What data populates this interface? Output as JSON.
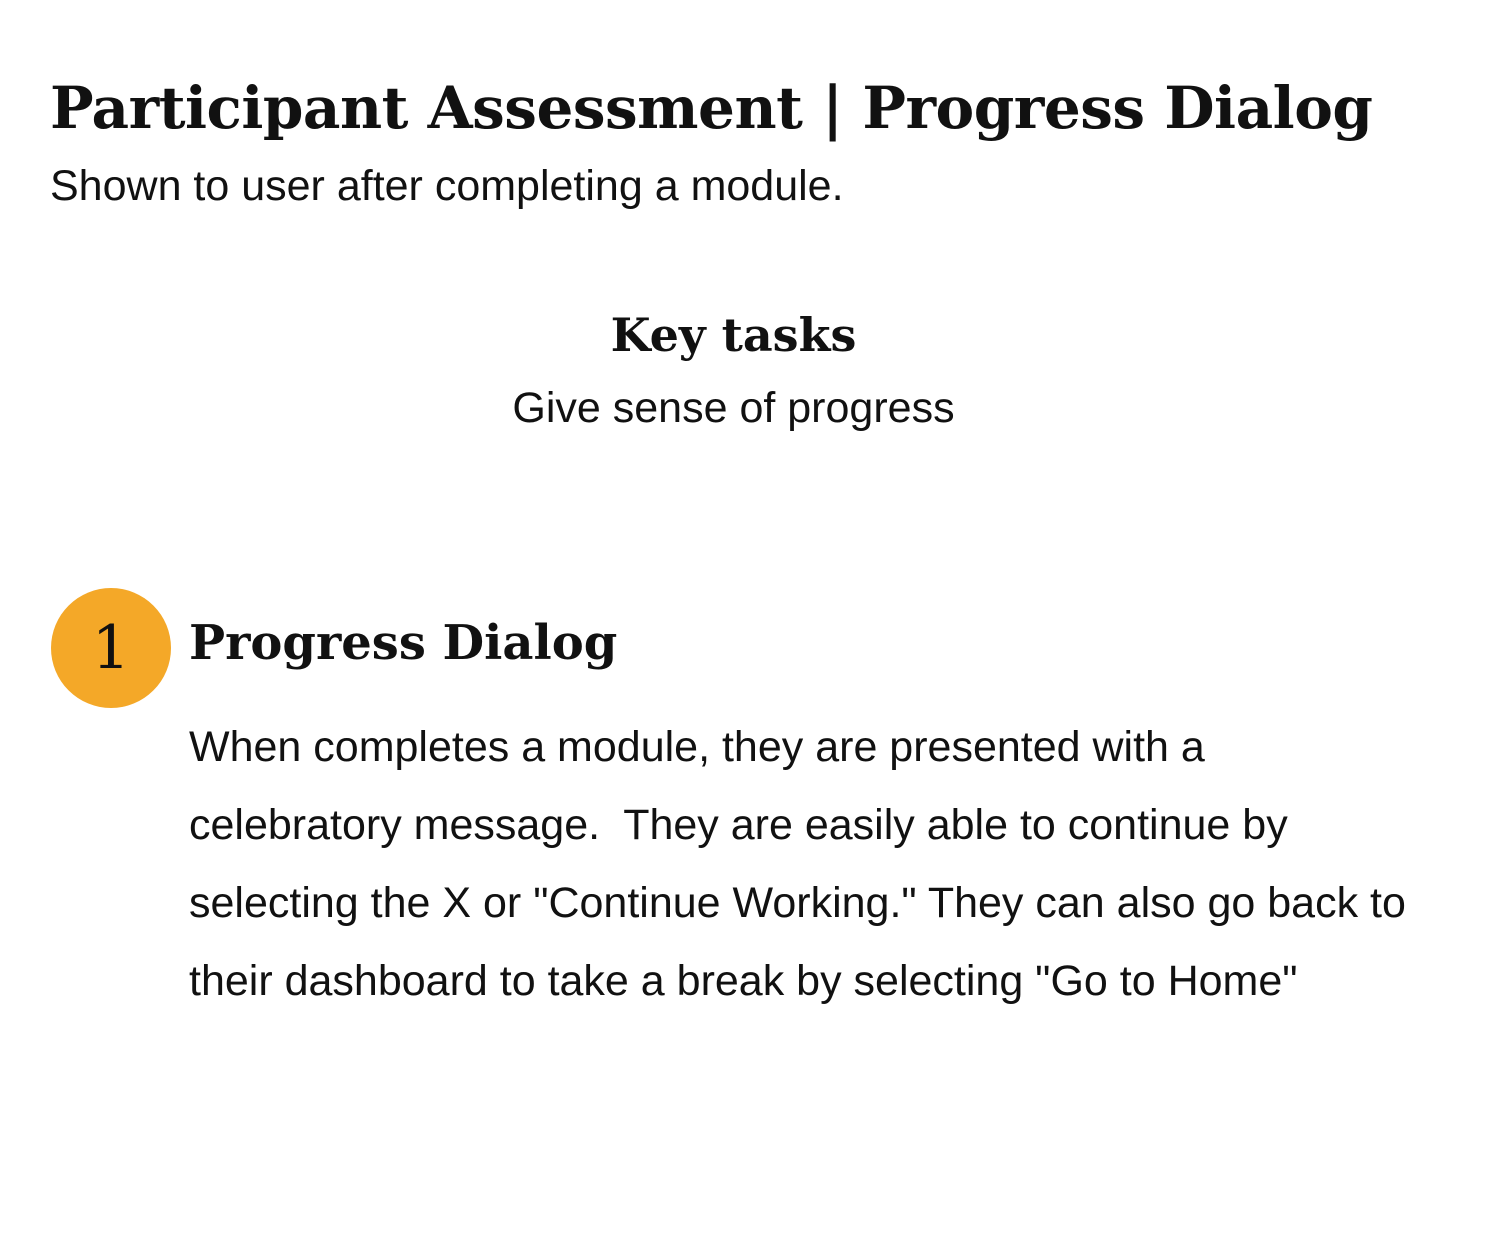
{
  "header": {
    "title": "Participant Assessment | Progress Dialog",
    "subtitle": "Shown to user after completing a module."
  },
  "key_tasks": {
    "heading": "Key tasks",
    "items": [
      "Give sense of progress"
    ]
  },
  "steps": [
    {
      "number": "1",
      "title": "Progress Dialog",
      "description": "When completes a module, they are presented with a celebratory message.  They are easily able to continue by selecting the X or \"Continue Working.\" They can also go back to their dashboard to take a break by selecting \"Go to Home\""
    }
  ],
  "colors": {
    "step_badge": "#F4A828",
    "text": "#111111",
    "background": "#FFFFFF"
  }
}
